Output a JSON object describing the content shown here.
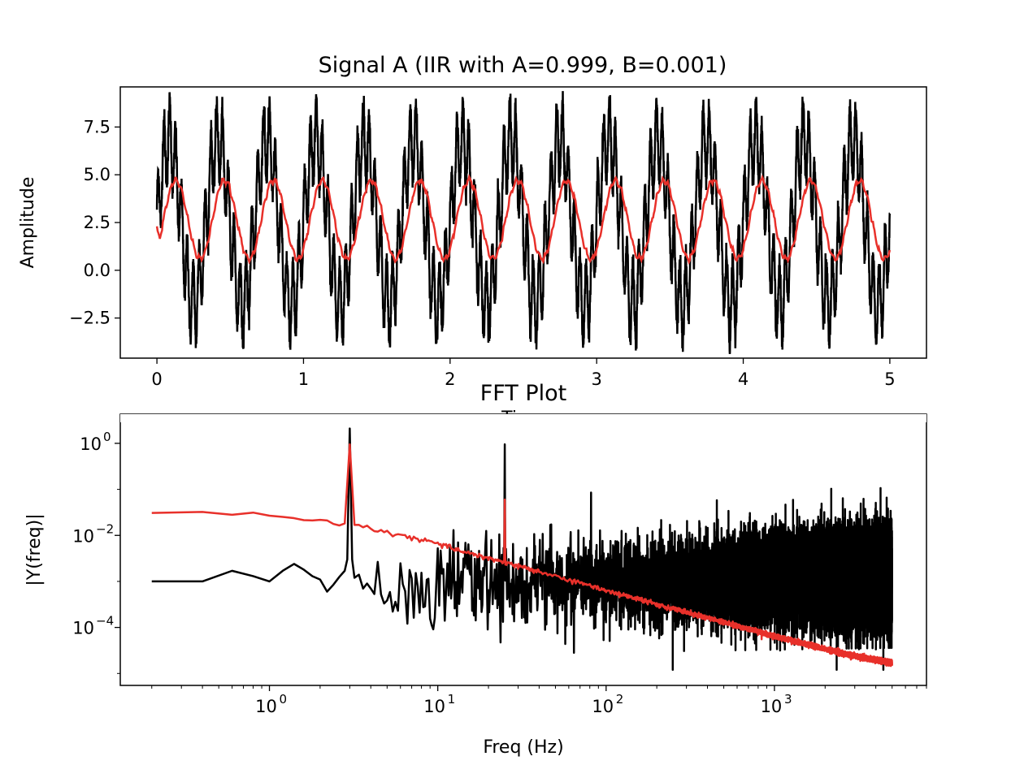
{
  "chart_data": [
    {
      "type": "line",
      "title": "Signal A (IIR with A=0.999, B=0.001)",
      "xlabel": "Time",
      "ylabel": "Amplitude",
      "xlim": [
        -0.25,
        5.25
      ],
      "ylim": [
        -4.6,
        9.6
      ],
      "xticks": [
        0,
        1,
        2,
        3,
        4,
        5
      ],
      "xtick_labels": [
        "0",
        "1",
        "2",
        "3",
        "4",
        "5"
      ],
      "yticks": [
        -2.5,
        0.0,
        2.5,
        5.0,
        7.5
      ],
      "ytick_labels": [
        "−2.5",
        "0.0",
        "2.5",
        "5.0",
        "7.5"
      ],
      "grid": false,
      "series": [
        {
          "color": "#000000",
          "description": "raw signal: offset 2.5 + 3 Hz sine (amp ~4.3) + 25 Hz sine (amp ~2) + noise",
          "x_range": [
            0,
            5
          ],
          "envelope_max": 9.2,
          "envelope_min": -4.0
        },
        {
          "color": "#e8302a",
          "description": "IIR filtered signal, 3 Hz oscillation",
          "x_range": [
            0,
            5
          ],
          "max": 4.9,
          "min": 0.6
        }
      ]
    },
    {
      "type": "line",
      "title": "FFT Plot",
      "xlabel": "Freq (Hz)",
      "ylabel": "|Y(freq)|",
      "xscale": "log",
      "yscale": "log",
      "xlim": [
        0.13,
        8000
      ],
      "ylim": [
        5.5e-06,
        4.3
      ],
      "xticks": [
        1,
        10,
        100,
        1000
      ],
      "xtick_labels": [
        {
          "base": "10",
          "exp": "0"
        },
        {
          "base": "10",
          "exp": "1"
        },
        {
          "base": "10",
          "exp": "2"
        },
        {
          "base": "10",
          "exp": "3"
        }
      ],
      "yticks": [
        0.0001,
        0.01,
        1
      ],
      "ytick_labels": [
        {
          "base": "10",
          "exp": "−4"
        },
        {
          "base": "10",
          "exp": "−2"
        },
        {
          "base": "10",
          "exp": "0"
        }
      ],
      "grid": false,
      "series": [
        {
          "color": "#000000",
          "points": [
            [
              0.2,
              0.001
            ],
            [
              0.4,
              0.001
            ],
            [
              0.6,
              0.0017
            ],
            [
              0.8,
              0.0013
            ],
            [
              1.0,
              0.001
            ],
            [
              1.2,
              0.0017
            ],
            [
              1.4,
              0.0024
            ],
            [
              1.6,
              0.0018
            ],
            [
              1.8,
              0.0013
            ],
            [
              2.0,
              0.0011
            ],
            [
              2.2,
              0.0006
            ],
            [
              2.4,
              0.00085
            ],
            [
              2.6,
              0.00125
            ],
            [
              2.8,
              0.0017
            ],
            [
              2.9,
              0.003
            ],
            [
              3.0,
              2.1
            ],
            [
              3.1,
              0.003
            ],
            [
              3.2,
              0.0012
            ],
            [
              3.4,
              0.0014
            ],
            [
              3.6,
              0.0007
            ],
            [
              3.8,
              0.0009
            ],
            [
              4.0,
              0.0007
            ]
          ],
          "noise_floor_start": 0.0008,
          "noise_floor_end": 0.0012,
          "peaks": [
            [
              3.0,
              2.1
            ],
            [
              25.0,
              0.95
            ]
          ],
          "x_range": [
            0.2,
            5000
          ]
        },
        {
          "color": "#e8302a",
          "points": [
            [
              0.2,
              0.03
            ],
            [
              0.4,
              0.031
            ],
            [
              0.8,
              0.028
            ],
            [
              1.0,
              0.027
            ],
            [
              1.5,
              0.024
            ],
            [
              2.0,
              0.02
            ],
            [
              2.5,
              0.018
            ],
            [
              2.8,
              0.017
            ],
            [
              3.0,
              0.95
            ],
            [
              3.2,
              0.016
            ],
            [
              5,
              0.012
            ],
            [
              10,
              0.0065
            ],
            [
              20,
              0.0032
            ],
            [
              24,
              0.0027
            ],
            [
              25,
              0.06
            ],
            [
              26,
              0.0025
            ],
            [
              50,
              0.0013
            ],
            [
              100,
              0.00064
            ],
            [
              200,
              0.00032
            ],
            [
              500,
              0.00013
            ],
            [
              1000,
              6.5e-05
            ],
            [
              2000,
              3.4e-05
            ],
            [
              3000,
              2.4e-05
            ],
            [
              5000,
              1.7e-05
            ]
          ],
          "x_range": [
            0.2,
            5000
          ]
        }
      ]
    }
  ]
}
